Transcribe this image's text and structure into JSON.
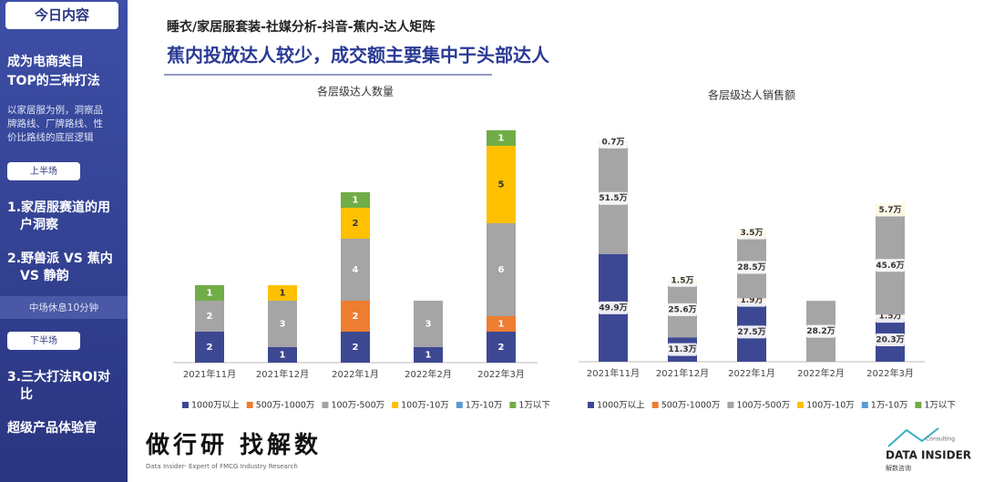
{
  "sidebar": {
    "heading": "今日内容",
    "topic": [
      "成为电商类目",
      "TOP的三种打法"
    ],
    "intro": [
      "以家居服为例，洞察品",
      "牌路线、厂牌路线、性",
      "价比路线的底层逻辑"
    ],
    "first_half": "上半场",
    "items_first": [
      [
        "1.家居服赛道的用",
        "户洞察"
      ],
      [
        "2.野兽派 VS 蕉内",
        "VS 静韵"
      ]
    ],
    "break": "中场休息10分钟",
    "second_half": "下半场",
    "items_second": [
      [
        "3.三大打法ROI对",
        "比"
      ]
    ],
    "extra": "超级产品体验官"
  },
  "header": {
    "breadcrumb": "睡衣/家居服套装-社媒分析-抖音-蕉内-达人矩阵",
    "headline": "蕉内投放达人较少，成交额主要集中于头部达人"
  },
  "footer": {
    "slogan": "做行研 找解数",
    "tagline": "Data Insider- Expert of FMCG Industry Research",
    "brand": "DATA INSIDER",
    "brand_sub": "Consulting",
    "brand_cn": "解数咨询"
  },
  "chart_data": [
    {
      "type": "stacked_bar",
      "title": "各层级达人数量",
      "categories": [
        "2021年11月",
        "2021年12月",
        "2022年1月",
        "2022年2月",
        "2022年3月"
      ],
      "series": [
        {
          "name": "1000万以上",
          "color": "#3d4893",
          "values": [
            2,
            1,
            2,
            1,
            2
          ]
        },
        {
          "name": "500万-1000万",
          "color": "#ed7d31",
          "values": [
            null,
            null,
            2,
            null,
            1
          ]
        },
        {
          "name": "100万-500万",
          "color": "#a5a5a5",
          "values": [
            2,
            3,
            4,
            3,
            6
          ]
        },
        {
          "name": "100万-10万",
          "color": "#ffc000",
          "values": [
            null,
            1,
            2,
            null,
            5
          ]
        },
        {
          "name": "1万-10万",
          "color": "#5b9bd5",
          "values": [
            null,
            null,
            null,
            null,
            null
          ]
        },
        {
          "name": "1万以下",
          "color": "#70ad47",
          "values": [
            1,
            null,
            1,
            null,
            1
          ]
        }
      ],
      "legend": "bottom"
    },
    {
      "type": "stacked_bar",
      "title": "各层级达人销售额",
      "categories": [
        "2021年11月",
        "2021年12月",
        "2022年1月",
        "2022年2月",
        "2022年3月"
      ],
      "series": [
        {
          "name": "1000万以上",
          "color": "#3d4893",
          "values": [
            49.9,
            11.3,
            27.5,
            null,
            20.3
          ],
          "value_labels": [
            "49.9万",
            "11.3万",
            "27.5万",
            null,
            "20.3万"
          ]
        },
        {
          "name": "500万-1000万",
          "color": "#ed7d31",
          "values": [
            null,
            null,
            1.9,
            null,
            1.5
          ],
          "value_labels": [
            null,
            null,
            "1.9万",
            null,
            "1.5万"
          ]
        },
        {
          "name": "100万-500万",
          "color": "#a5a5a5",
          "values": [
            51.5,
            25.6,
            28.5,
            28.2,
            45.6
          ],
          "value_labels": [
            "51.5万",
            "25.6万",
            "28.5万",
            "28.2万",
            "45.6万"
          ]
        },
        {
          "name": "100万-10万",
          "color": "#ffc000",
          "values": [
            null,
            1.5,
            3.5,
            null,
            5.7
          ],
          "value_labels": [
            null,
            "1.5万",
            "3.5万",
            null,
            "5.7万"
          ]
        },
        {
          "name": "1万-10万",
          "color": "#5b9bd5",
          "values": [
            null,
            null,
            null,
            null,
            null
          ],
          "value_labels": [
            null,
            null,
            null,
            null,
            null
          ]
        },
        {
          "name": "1万以下",
          "color": "#70ad47",
          "values": [
            0.7,
            null,
            null,
            null,
            null
          ],
          "value_labels": [
            "0.7万",
            null,
            null,
            null,
            null
          ]
        }
      ],
      "legend": "bottom"
    }
  ]
}
